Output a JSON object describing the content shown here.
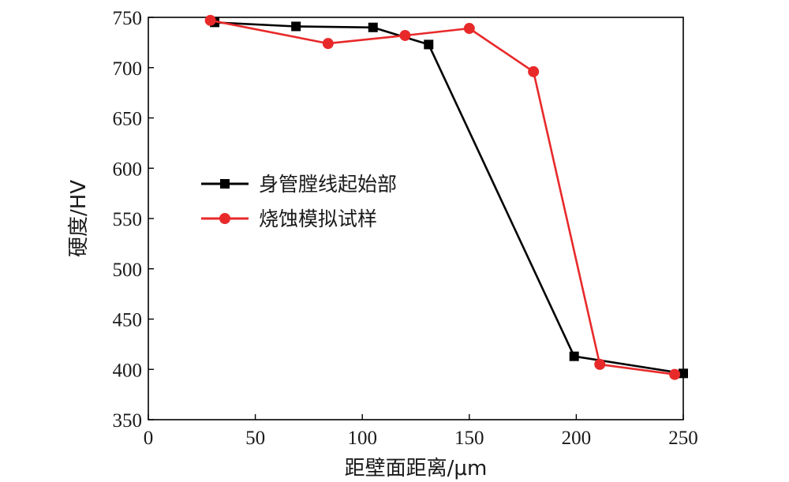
{
  "chart_data": {
    "type": "line",
    "xlabel": "距壁面距离/μm",
    "ylabel": "硬度/HV",
    "xlim": [
      0,
      250
    ],
    "ylim": [
      350,
      750
    ],
    "xticks": [
      0,
      50,
      100,
      150,
      200,
      250
    ],
    "yticks": [
      350,
      400,
      450,
      500,
      550,
      600,
      650,
      700,
      750
    ],
    "grid": false,
    "legend_position": "center-left",
    "series": [
      {
        "name": "身管膛线起始部",
        "color": "#000000",
        "marker": "square",
        "x": [
          31,
          69,
          105,
          131,
          199,
          250
        ],
        "y": [
          745,
          741,
          740,
          723,
          413,
          396
        ]
      },
      {
        "name": "烧蚀模拟试样",
        "color": "#e8292a",
        "marker": "circle",
        "x": [
          29,
          84,
          120,
          150,
          180,
          211,
          246
        ],
        "y": [
          747,
          724,
          732,
          739,
          696,
          405,
          395
        ]
      }
    ]
  }
}
